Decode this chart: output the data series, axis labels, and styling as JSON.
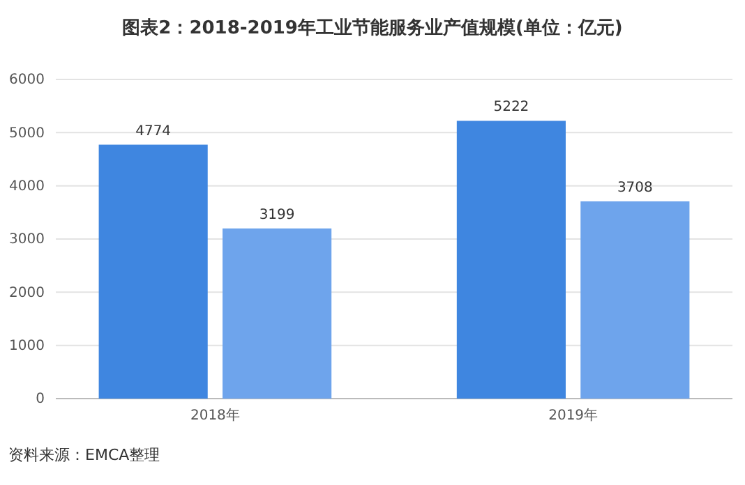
{
  "chart_data": {
    "type": "bar",
    "title": "图表2：2018-2019年工业节能服务业产值规模(单位：亿元)",
    "categories": [
      "2018年",
      "2019年"
    ],
    "series": [
      {
        "color": "#3f86e0",
        "values": [
          4774,
          5222
        ]
      },
      {
        "color": "#6ea4ec",
        "values": [
          3199,
          3708
        ]
      }
    ],
    "ylim": [
      0,
      6000
    ],
    "yticks": [
      0,
      1000,
      2000,
      3000,
      4000,
      5000,
      6000
    ],
    "grid": "y",
    "data_labels": true,
    "annotations": [
      "资料来源：EMCA整理"
    ]
  }
}
